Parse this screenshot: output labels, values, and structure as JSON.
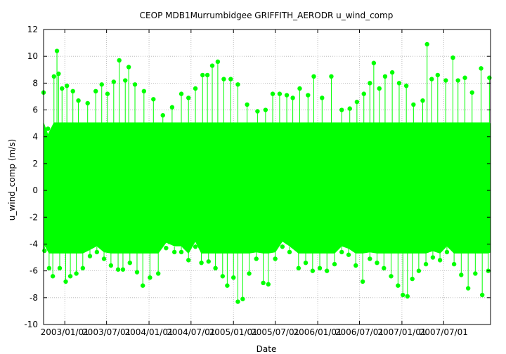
{
  "chart_data": {
    "type": "scatter",
    "title": "CEOP MDB1Murrumbidgee GRIFFITH_AERODR  u_wind_comp",
    "xlabel": "Date",
    "ylabel": "u_wind_comp (m/s)",
    "x_type": "date",
    "xlim": [
      "2002-10-01",
      "2008-01-20"
    ],
    "ylim": [
      -10,
      12
    ],
    "yticks": [
      -10,
      -8,
      -6,
      -4,
      -2,
      0,
      2,
      4,
      6,
      8,
      10,
      12
    ],
    "xticks": [
      {
        "date": "2003-01-01",
        "label": "2003/01/01"
      },
      {
        "date": "2003-07-01",
        "label": "2003/07/01"
      },
      {
        "date": "2004-01-01",
        "label": "2004/01/01"
      },
      {
        "date": "2004-07-01",
        "label": "2004/07/01"
      },
      {
        "date": "2005-01-01",
        "label": "2005/01/01"
      },
      {
        "date": "2005-07-01",
        "label": "2005/07/01"
      },
      {
        "date": "2006-01-01",
        "label": "2006/01/01"
      },
      {
        "date": "2006-07-01",
        "label": "2006/07/01"
      },
      {
        "date": "2007-01-01",
        "label": "2007/01/01"
      },
      {
        "date": "2007-07-01",
        "label": "2007/07/01"
      }
    ],
    "grid": true,
    "legend": "none",
    "color": "#00ff00",
    "series": [
      {
        "values": [
          [
            "2002-10-01",
            7.3
          ],
          [
            "2002-10-20",
            4.6
          ],
          [
            "2002-11-15",
            8.5
          ],
          [
            "2002-11-28",
            10.4
          ],
          [
            "2002-12-05",
            8.7
          ],
          [
            "2002-12-20",
            7.6
          ],
          [
            "2003-01-10",
            7.8
          ],
          [
            "2003-02-05",
            7.4
          ],
          [
            "2003-03-01",
            6.7
          ],
          [
            "2003-04-10",
            6.5
          ],
          [
            "2003-05-15",
            7.4
          ],
          [
            "2003-06-10",
            7.9
          ],
          [
            "2003-07-05",
            7.2
          ],
          [
            "2003-08-01",
            8.1
          ],
          [
            "2003-08-25",
            9.7
          ],
          [
            "2003-09-20",
            8.2
          ],
          [
            "2003-10-05",
            9.2
          ],
          [
            "2003-11-01",
            7.9
          ],
          [
            "2003-12-10",
            7.4
          ],
          [
            "2004-01-20",
            6.8
          ],
          [
            "2004-03-01",
            5.6
          ],
          [
            "2004-04-10",
            6.2
          ],
          [
            "2004-05-20",
            7.2
          ],
          [
            "2004-06-20",
            6.9
          ],
          [
            "2004-07-20",
            7.6
          ],
          [
            "2004-08-20",
            8.6
          ],
          [
            "2004-09-10",
            8.6
          ],
          [
            "2004-10-01",
            9.3
          ],
          [
            "2004-10-25",
            9.6
          ],
          [
            "2004-11-20",
            8.3
          ],
          [
            "2004-12-20",
            8.3
          ],
          [
            "2005-01-20",
            7.9
          ],
          [
            "2005-03-01",
            6.4
          ],
          [
            "2005-04-15",
            5.9
          ],
          [
            "2005-05-20",
            6.0
          ],
          [
            "2005-06-20",
            7.2
          ],
          [
            "2005-07-20",
            7.2
          ],
          [
            "2005-08-20",
            7.1
          ],
          [
            "2005-09-15",
            6.9
          ],
          [
            "2005-10-15",
            7.6
          ],
          [
            "2005-11-20",
            7.1
          ],
          [
            "2005-12-15",
            8.5
          ],
          [
            "2006-01-20",
            6.9
          ],
          [
            "2006-03-01",
            8.5
          ],
          [
            "2006-04-15",
            6.0
          ],
          [
            "2006-05-20",
            6.1
          ],
          [
            "2006-06-20",
            6.6
          ],
          [
            "2006-07-20",
            7.2
          ],
          [
            "2006-08-15",
            8.0
          ],
          [
            "2006-09-01",
            9.5
          ],
          [
            "2006-09-25",
            7.6
          ],
          [
            "2006-10-20",
            8.5
          ],
          [
            "2006-11-20",
            8.8
          ],
          [
            "2006-12-20",
            8.0
          ],
          [
            "2007-01-20",
            7.8
          ],
          [
            "2007-02-20",
            6.4
          ],
          [
            "2007-04-01",
            6.7
          ],
          [
            "2007-04-20",
            10.9
          ],
          [
            "2007-05-10",
            8.3
          ],
          [
            "2007-06-05",
            8.6
          ],
          [
            "2007-07-10",
            8.2
          ],
          [
            "2007-08-10",
            9.9
          ],
          [
            "2007-09-01",
            8.2
          ],
          [
            "2007-10-01",
            8.4
          ],
          [
            "2007-11-01",
            7.3
          ],
          [
            "2007-12-10",
            9.1
          ],
          [
            "2008-01-15",
            8.4
          ],
          [
            "2002-10-05",
            -4.5
          ],
          [
            "2002-10-25",
            -5.8
          ],
          [
            "2002-11-10",
            -6.4
          ],
          [
            "2002-12-10",
            -5.8
          ],
          [
            "2003-01-05",
            -6.8
          ],
          [
            "2003-01-25",
            -6.4
          ],
          [
            "2003-02-20",
            -6.2
          ],
          [
            "2003-03-20",
            -5.8
          ],
          [
            "2003-04-20",
            -4.9
          ],
          [
            "2003-05-20",
            -4.6
          ],
          [
            "2003-06-20",
            -5.1
          ],
          [
            "2003-07-20",
            -5.6
          ],
          [
            "2003-08-20",
            -5.9
          ],
          [
            "2003-09-10",
            -5.9
          ],
          [
            "2003-10-10",
            -5.4
          ],
          [
            "2003-11-10",
            -6.1
          ],
          [
            "2003-12-05",
            -7.1
          ],
          [
            "2004-01-05",
            -6.5
          ],
          [
            "2004-02-10",
            -6.2
          ],
          [
            "2004-03-15",
            -4.3
          ],
          [
            "2004-04-20",
            -4.6
          ],
          [
            "2004-05-20",
            -4.6
          ],
          [
            "2004-06-20",
            -5.2
          ],
          [
            "2004-07-20",
            -4.2
          ],
          [
            "2004-08-15",
            -5.4
          ],
          [
            "2004-09-15",
            -5.3
          ],
          [
            "2004-10-15",
            -5.8
          ],
          [
            "2004-11-15",
            -6.4
          ],
          [
            "2004-12-05",
            -7.1
          ],
          [
            "2005-01-01",
            -6.5
          ],
          [
            "2005-01-20",
            -8.3
          ],
          [
            "2005-02-10",
            -8.1
          ],
          [
            "2005-03-10",
            -6.2
          ],
          [
            "2005-04-10",
            -5.1
          ],
          [
            "2005-05-10",
            -6.9
          ],
          [
            "2005-06-01",
            -7.0
          ],
          [
            "2005-07-01",
            -5.1
          ],
          [
            "2005-08-01",
            -4.2
          ],
          [
            "2005-09-01",
            -4.6
          ],
          [
            "2005-10-10",
            -5.8
          ],
          [
            "2005-11-10",
            -5.4
          ],
          [
            "2005-12-10",
            -6.0
          ],
          [
            "2006-01-10",
            -5.8
          ],
          [
            "2006-02-10",
            -6.0
          ],
          [
            "2006-03-15",
            -5.5
          ],
          [
            "2006-04-15",
            -4.6
          ],
          [
            "2006-05-15",
            -4.8
          ],
          [
            "2006-06-15",
            -5.6
          ],
          [
            "2006-07-15",
            -6.8
          ],
          [
            "2006-08-15",
            -5.1
          ],
          [
            "2006-09-15",
            -5.4
          ],
          [
            "2006-10-15",
            -5.8
          ],
          [
            "2006-11-15",
            -6.4
          ],
          [
            "2006-12-15",
            -7.1
          ],
          [
            "2007-01-05",
            -7.8
          ],
          [
            "2007-01-25",
            -7.9
          ],
          [
            "2007-02-15",
            -6.6
          ],
          [
            "2007-03-15",
            -6.0
          ],
          [
            "2007-04-15",
            -5.5
          ],
          [
            "2007-05-15",
            -5.0
          ],
          [
            "2007-06-15",
            -5.2
          ],
          [
            "2007-07-15",
            -4.6
          ],
          [
            "2007-08-15",
            -5.5
          ],
          [
            "2007-09-15",
            -6.3
          ],
          [
            "2007-10-15",
            -7.3
          ],
          [
            "2007-11-15",
            -6.2
          ],
          [
            "2007-12-15",
            -7.8
          ],
          [
            "2008-01-10",
            -6.0
          ]
        ]
      }
    ]
  }
}
